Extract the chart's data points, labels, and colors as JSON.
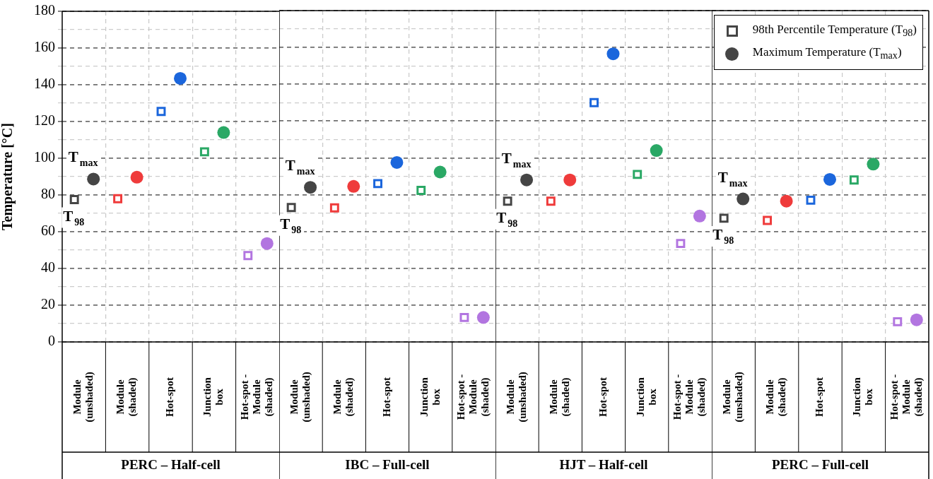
{
  "chart_data": [
    {
      "type": "scatter",
      "xlabel": "PERC – Half-cell",
      "ylabel": "Temperature [°C]",
      "categories": [
        "Module (unshaded)",
        "Module (shaded)",
        "Hot-spot",
        "Junction box",
        "Hot-spot - Module (shaded)"
      ],
      "ylim": [
        0,
        180
      ],
      "yticks": [
        0,
        {
          "value": 10,
          "label": null
        },
        20,
        {
          "value": 30,
          "label": null
        },
        40,
        {
          "value": 50,
          "label": null
        },
        60,
        {
          "value": 70,
          "label": null
        },
        80,
        {
          "value": 90,
          "label": null
        },
        100,
        {
          "value": 110,
          "label": null
        },
        120,
        {
          "value": 130,
          "label": null
        },
        140,
        {
          "value": 150,
          "label": null
        },
        160,
        {
          "value": 170,
          "label": null
        },
        180
      ],
      "grid": true,
      "series": [
        {
          "marker": "square",
          "colors": [
            "#454545",
            "#ef3b3b",
            "#1b66dc",
            "#2aa865",
            "#b275e0"
          ],
          "values": [
            77.5,
            78,
            125.5,
            103.5,
            47
          ]
        },
        {
          "marker": "circle",
          "colors": [
            "#454545",
            "#ef3b3b",
            "#1b66dc",
            "#2aa865",
            "#b275e0"
          ],
          "values": [
            88.7,
            89.7,
            143.5,
            114,
            53.6
          ]
        }
      ],
      "annotations": [
        "T$_{98}$",
        "T$_{max}$"
      ]
    },
    {
      "type": "scatter",
      "xlabel": "IBC – Full-cell",
      "tick_labels": "x",
      "categories": [
        "Module (unshaded)",
        "Module (shaded)",
        "Hot-spot",
        "Junction box",
        "Hot-spot - Module (shaded)"
      ],
      "ylim": [
        0,
        180
      ],
      "yticks": [
        0,
        {
          "value": 10,
          "label": null
        },
        20,
        {
          "value": 30,
          "label": null
        },
        40,
        {
          "value": 50,
          "label": null
        },
        60,
        {
          "value": 70,
          "label": null
        },
        80,
        {
          "value": 90,
          "label": null
        },
        100,
        {
          "value": 110,
          "label": null
        },
        120,
        {
          "value": 130,
          "label": null
        },
        140,
        {
          "value": 150,
          "label": null
        },
        160,
        {
          "value": 170,
          "label": null
        },
        180
      ],
      "grid": true,
      "series": [
        {
          "marker": "square",
          "colors": [
            "#454545",
            "#ef3b3b",
            "#1b66dc",
            "#2aa865",
            "#b275e0"
          ],
          "values": [
            73,
            72.8,
            86,
            82.3,
            13.3
          ]
        },
        {
          "marker": "circle",
          "colors": [
            "#454545",
            "#ef3b3b",
            "#1b66dc",
            "#2aa865",
            "#b275e0"
          ],
          "values": [
            84,
            84.5,
            97.5,
            92.3,
            13.3
          ]
        }
      ],
      "annotations": [
        "T$_{98}$",
        "T$_{max}$"
      ]
    },
    {
      "type": "scatter",
      "xlabel": "HJT – Half-cell",
      "tick_labels": "x",
      "categories": [
        "Module (unshaded)",
        "Module (shaded)",
        "Hot-spot",
        "Junction box",
        "Hot-spot - Module (shaded)"
      ],
      "ylim": [
        0,
        180
      ],
      "yticks": [
        0,
        {
          "value": 10,
          "label": null
        },
        20,
        {
          "value": 30,
          "label": null
        },
        40,
        {
          "value": 50,
          "label": null
        },
        60,
        {
          "value": 70,
          "label": null
        },
        80,
        {
          "value": 90,
          "label": null
        },
        100,
        {
          "value": 110,
          "label": null
        },
        120,
        {
          "value": 130,
          "label": null
        },
        140,
        {
          "value": 150,
          "label": null
        },
        160,
        {
          "value": 170,
          "label": null
        },
        180
      ],
      "grid": true,
      "series": [
        {
          "marker": "square",
          "colors": [
            "#454545",
            "#ef3b3b",
            "#1b66dc",
            "#2aa865",
            "#b275e0"
          ],
          "values": [
            76.5,
            76.5,
            130,
            91,
            53.5
          ]
        },
        {
          "marker": "circle",
          "colors": [
            "#454545",
            "#ef3b3b",
            "#1b66dc",
            "#2aa865",
            "#b275e0"
          ],
          "values": [
            88,
            88,
            156.5,
            104,
            68.4
          ]
        }
      ],
      "annotations": [
        "T$_{98}$",
        "T$_{max}$"
      ]
    },
    {
      "type": "scatter",
      "xlabel": "PERC – Full-cell",
      "tick_labels": "x",
      "legend": "top right",
      "categories": [
        "Module (unshaded)",
        "Module (shaded)",
        "Hot-spot",
        "Junction box",
        "Hot-spot - Module (shaded)"
      ],
      "ylim": [
        0,
        180
      ],
      "yticks": [
        0,
        {
          "value": 10,
          "label": null
        },
        20,
        {
          "value": 30,
          "label": null
        },
        40,
        {
          "value": 50,
          "label": null
        },
        60,
        {
          "value": 70,
          "label": null
        },
        80,
        {
          "value": 90,
          "label": null
        },
        100,
        {
          "value": 110,
          "label": null
        },
        120,
        {
          "value": 130,
          "label": null
        },
        140,
        {
          "value": 150,
          "label": null
        },
        160,
        {
          "value": 170,
          "label": null
        },
        180
      ],
      "grid": true,
      "series": [
        {
          "name": "98th Percentile Temperature (T$_{98}$)",
          "marker": "square",
          "colors": [
            "#454545",
            "#ef3b3b",
            "#1b66dc",
            "#2aa865",
            "#b275e0"
          ],
          "values": [
            67.2,
            66,
            77,
            88,
            11
          ]
        },
        {
          "name": "Maximum Temperature (T$_{max}$)",
          "marker": "circle",
          "colors": [
            "#454545",
            "#ef3b3b",
            "#1b66dc",
            "#2aa865",
            "#b275e0"
          ],
          "values": [
            77.7,
            76.5,
            88.3,
            96.6,
            12
          ]
        }
      ],
      "annotations": [
        "T$_{98}$",
        "T$_{max}$"
      ]
    }
  ]
}
